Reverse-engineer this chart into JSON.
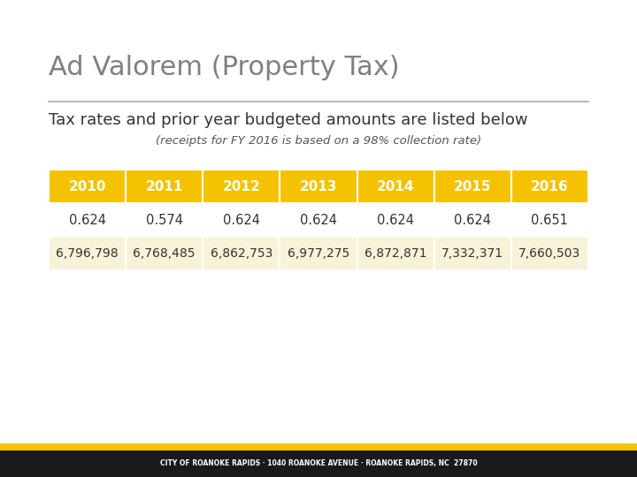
{
  "title": "Ad Valorem (Property Tax)",
  "subtitle": "Tax rates and prior year budgeted amounts are listed below",
  "subtitle2": "(receipts for FY 2016 is based on a 98% collection rate)",
  "footer": "CITY OF ROANOKE RAPIDS · 1040 ROANOKE AVENUE · ROANOKE RAPIDS, NC  27870",
  "columns": [
    "2010",
    "2011",
    "2012",
    "2013",
    "2014",
    "2015",
    "2016"
  ],
  "row1": [
    "0.624",
    "0.574",
    "0.624",
    "0.624",
    "0.624",
    "0.624",
    "0.651"
  ],
  "row2": [
    "6,796,798",
    "6,768,485",
    "6,862,753",
    "6,977,275",
    "6,872,871",
    "7,332,371",
    "7,660,503"
  ],
  "header_bg": "#F5C200",
  "header_text": "#FFFFFF",
  "row_odd_bg": "#FFFFFF",
  "row_even_bg": "#F7F2D8",
  "data_text": "#333333",
  "title_color": "#808080",
  "subtitle_color": "#333333",
  "subtitle2_color": "#555555",
  "bg_color": "#FFFFFF",
  "footer_bg": "#1A1A1A",
  "footer_text": "#FFFFFF",
  "bar_color": "#F5C200",
  "separator_color": "#AAAAAA"
}
